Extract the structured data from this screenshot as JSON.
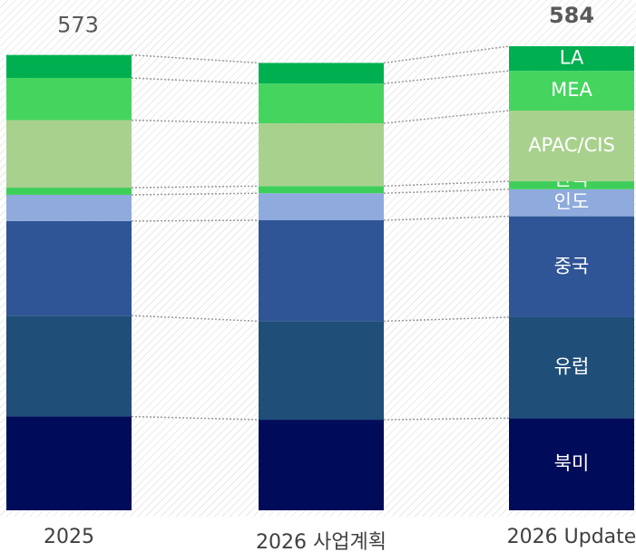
{
  "chart_data": {
    "type": "stacked_bar",
    "categories": [
      "2025",
      "2026 사업계획",
      "2026 Update"
    ],
    "totals": [
      573,
      null,
      584
    ],
    "series": [
      {
        "name": "북미",
        "color": "#000c5a",
        "values": [
          118,
          114,
          116
        ]
      },
      {
        "name": "유럽",
        "color": "#1f4e79",
        "values": [
          127,
          124,
          127
        ]
      },
      {
        "name": "중국",
        "color": "#2f5597",
        "values": [
          119,
          127,
          127
        ]
      },
      {
        "name": "인도",
        "color": "#8faadc",
        "values": [
          33,
          34,
          34
        ]
      },
      {
        "name": "한국",
        "color": "#3ecf5a",
        "values": [
          9,
          9,
          10
        ]
      },
      {
        "name": "APAC/CIS",
        "color": "#a9d18e",
        "values": [
          85,
          79,
          89
        ]
      },
      {
        "name": "MEA",
        "color": "#45d55f",
        "values": [
          53,
          50,
          50
        ]
      },
      {
        "name": "LA",
        "color": "#00b050",
        "values": [
          29,
          26,
          31
        ]
      }
    ]
  }
}
